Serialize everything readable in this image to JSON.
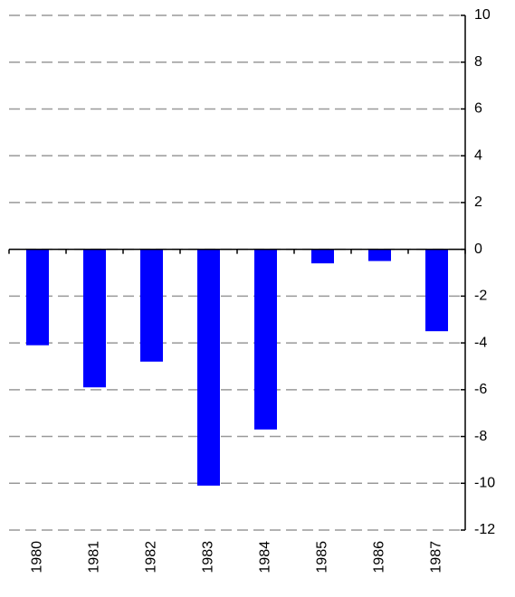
{
  "chart_data": {
    "type": "bar",
    "categories": [
      "1980",
      "1981",
      "1982",
      "1983",
      "1984",
      "1985",
      "1986",
      "1987"
    ],
    "values": [
      -4.1,
      -5.9,
      -4.8,
      -10.1,
      -7.7,
      -0.6,
      -0.5,
      -3.5
    ],
    "color": "#0000ff",
    "ylim": [
      -12,
      10
    ],
    "yticks": [
      -12,
      -10,
      -8,
      -6,
      -4,
      -2,
      0,
      2,
      4,
      6,
      8,
      10
    ],
    "grid": true,
    "y_axis_side": "right"
  }
}
